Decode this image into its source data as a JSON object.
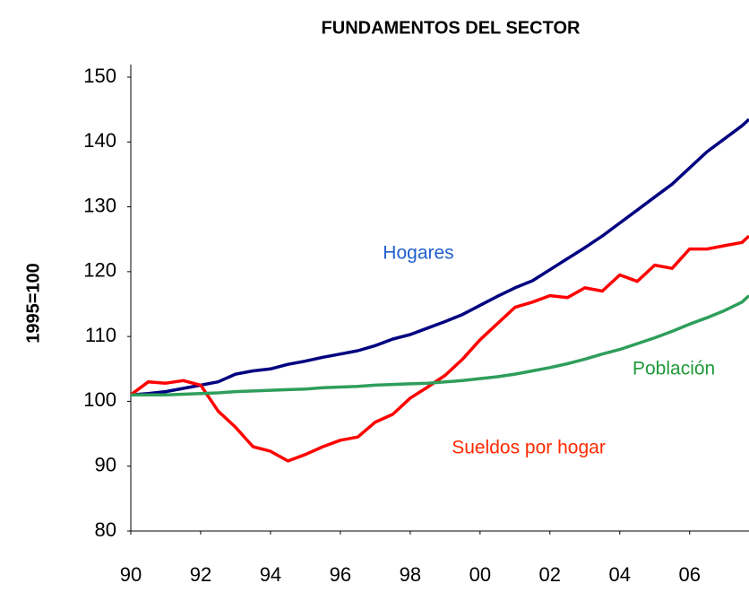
{
  "chart_data": {
    "type": "line",
    "title": "FUNDAMENTOS DEL SECTOR",
    "ylabel": "1995=100",
    "x": [
      1990,
      1990.5,
      1991,
      1991.5,
      1992,
      1992.5,
      1993,
      1993.5,
      1994,
      1994.5,
      1995,
      1995.5,
      1996,
      1996.5,
      1997,
      1997.5,
      1998,
      1998.5,
      1999,
      1999.5,
      2000,
      2000.5,
      2001,
      2001.5,
      2002,
      2002.5,
      2003,
      2003.5,
      2004,
      2004.5,
      2005,
      2005.5,
      2006,
      2006.5,
      2007,
      2007.5,
      2007.7
    ],
    "series": [
      {
        "name": "Hogares",
        "color": "#000080",
        "label_color": "#1f5fd0",
        "values": [
          101,
          101.2,
          101.5,
          102,
          102.5,
          103,
          104.2,
          104.7,
          105,
          105.7,
          106.2,
          106.8,
          107.3,
          107.8,
          108.6,
          109.6,
          110.3,
          111.3,
          112.3,
          113.4,
          114.8,
          116.2,
          117.5,
          118.6,
          120.3,
          122,
          123.7,
          125.5,
          127.5,
          129.5,
          131.5,
          133.5,
          136,
          138.5,
          140.5,
          142.5,
          143.5
        ]
      },
      {
        "name": "Sueldos por hogar",
        "color": "#ff0000",
        "label_color": "#ff2a00",
        "values": [
          101,
          103,
          102.8,
          103.2,
          102.5,
          98.5,
          96,
          93,
          92.3,
          90.8,
          91.8,
          93,
          94,
          94.5,
          96.8,
          98,
          100.5,
          102.2,
          104,
          106.5,
          109.5,
          112,
          114.5,
          115.3,
          116.3,
          116,
          117.5,
          117,
          119.5,
          118.5,
          121,
          120.5,
          123.5,
          123.5,
          124,
          124.5,
          125.5
        ]
      },
      {
        "name": "Población",
        "color": "#2e9e5b",
        "label_color": "#1f9a3a",
        "values": [
          101,
          101,
          101,
          101.1,
          101.2,
          101.3,
          101.5,
          101.6,
          101.7,
          101.8,
          101.9,
          102.1,
          102.2,
          102.3,
          102.5,
          102.6,
          102.7,
          102.8,
          103,
          103.2,
          103.5,
          103.8,
          104.2,
          104.7,
          105.2,
          105.8,
          106.5,
          107.3,
          108,
          108.9,
          109.8,
          110.8,
          111.9,
          112.9,
          114,
          115.3,
          116.3
        ]
      }
    ],
    "xlim": [
      1990,
      2007.7
    ],
    "xticks": [
      {
        "value": 1990,
        "label": "90"
      },
      {
        "value": 1992,
        "label": "92"
      },
      {
        "value": 1994,
        "label": "94"
      },
      {
        "value": 1996,
        "label": "96"
      },
      {
        "value": 1998,
        "label": "98"
      },
      {
        "value": 2000,
        "label": "00"
      },
      {
        "value": 2002,
        "label": "02"
      },
      {
        "value": 2004,
        "label": "04"
      },
      {
        "value": 2006,
        "label": "06"
      }
    ],
    "ylim": [
      80,
      150
    ],
    "yticks": [
      80,
      90,
      100,
      110,
      120,
      130,
      140,
      150
    ],
    "grid": false
  }
}
